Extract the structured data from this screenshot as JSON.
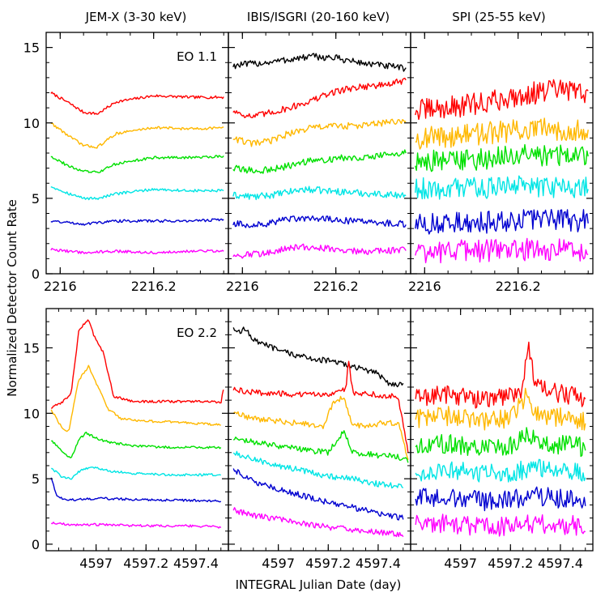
{
  "figure": {
    "ylabel": "Normalized Detector Count Rate",
    "xlabel": "INTEGRAL Julian Date (day)",
    "column_titles": [
      "JEM-X (3-30 keV)",
      "IBIS/ISGRI (20-160 keV)",
      "SPI (25-55 keV)"
    ],
    "panel_labels": [
      "EO 1.1",
      "EO 2.2"
    ]
  },
  "chart_data": [
    {
      "type": "line",
      "instrument": "JEM-X (3-30 keV)",
      "label": "EO 1.1",
      "xlim": [
        2215.97,
        2216.36
      ],
      "ylim": [
        0,
        16
      ],
      "xticks": [
        2216,
        2216.2
      ],
      "yticks": [
        0,
        5,
        10,
        15
      ],
      "series": [
        {
          "color": "#ff0000",
          "x": [
            2215.98,
            2216.02,
            2216.05,
            2216.08,
            2216.12,
            2216.2,
            2216.28,
            2216.35
          ],
          "y": [
            12.0,
            11.3,
            10.7,
            10.6,
            11.4,
            11.8,
            11.7,
            11.7
          ]
        },
        {
          "color": "#ffb800",
          "x": [
            2215.98,
            2216.02,
            2216.05,
            2216.08,
            2216.12,
            2216.2,
            2216.28,
            2216.35
          ],
          "y": [
            10.0,
            9.1,
            8.5,
            8.4,
            9.3,
            9.7,
            9.6,
            9.7
          ]
        },
        {
          "color": "#00e000",
          "x": [
            2215.98,
            2216.02,
            2216.05,
            2216.08,
            2216.12,
            2216.2,
            2216.28,
            2216.35
          ],
          "y": [
            7.8,
            7.1,
            6.8,
            6.7,
            7.3,
            7.7,
            7.7,
            7.8
          ]
        },
        {
          "color": "#00e5e5",
          "x": [
            2215.98,
            2216.02,
            2216.05,
            2216.08,
            2216.12,
            2216.2,
            2216.28,
            2216.35
          ],
          "y": [
            5.8,
            5.3,
            5.0,
            5.0,
            5.3,
            5.6,
            5.5,
            5.5
          ]
        },
        {
          "color": "#0000d0",
          "x": [
            2215.98,
            2216.05,
            2216.12,
            2216.2,
            2216.28,
            2216.35
          ],
          "y": [
            3.5,
            3.3,
            3.5,
            3.5,
            3.5,
            3.6
          ]
        },
        {
          "color": "#ff00ff",
          "x": [
            2215.98,
            2216.05,
            2216.12,
            2216.2,
            2216.28,
            2216.35
          ],
          "y": [
            1.6,
            1.4,
            1.5,
            1.4,
            1.5,
            1.5
          ]
        }
      ]
    },
    {
      "type": "line",
      "instrument": "IBIS/ISGRI (20-160 keV)",
      "label": "",
      "xlim": [
        2215.97,
        2216.36
      ],
      "ylim": [
        0,
        16
      ],
      "xticks": [
        2216,
        2216.2
      ],
      "yticks": [
        0,
        5,
        10,
        15
      ],
      "series": [
        {
          "color": "#000000",
          "x": [
            2215.98,
            2216.05,
            2216.1,
            2216.15,
            2216.2,
            2216.25,
            2216.3,
            2216.35
          ],
          "y": [
            13.8,
            14.0,
            14.2,
            14.4,
            14.3,
            14.0,
            13.8,
            13.6
          ]
        },
        {
          "color": "#ff0000",
          "x": [
            2215.98,
            2216.02,
            2216.05,
            2216.1,
            2216.15,
            2216.2,
            2216.25,
            2216.3,
            2216.35
          ],
          "y": [
            10.8,
            10.4,
            10.6,
            11.0,
            11.5,
            12.1,
            12.4,
            12.5,
            12.8
          ]
        },
        {
          "color": "#ffb800",
          "x": [
            2215.98,
            2216.02,
            2216.06,
            2216.1,
            2216.15,
            2216.2,
            2216.25,
            2216.3,
            2216.35
          ],
          "y": [
            9.0,
            8.6,
            8.8,
            9.3,
            9.7,
            9.8,
            9.8,
            10.0,
            10.1
          ]
        },
        {
          "color": "#00e000",
          "x": [
            2215.98,
            2216.03,
            2216.08,
            2216.13,
            2216.18,
            2216.23,
            2216.28,
            2216.35
          ],
          "y": [
            7.0,
            6.8,
            7.0,
            7.4,
            7.6,
            7.7,
            7.8,
            8.0
          ]
        },
        {
          "color": "#00e5e5",
          "x": [
            2215.98,
            2216.03,
            2216.08,
            2216.13,
            2216.18,
            2216.23,
            2216.28,
            2216.35
          ],
          "y": [
            5.2,
            5.1,
            5.3,
            5.6,
            5.5,
            5.4,
            5.3,
            5.2
          ]
        },
        {
          "color": "#0000d0",
          "x": [
            2215.98,
            2216.03,
            2216.08,
            2216.13,
            2216.18,
            2216.23,
            2216.28,
            2216.35
          ],
          "y": [
            3.3,
            3.2,
            3.5,
            3.7,
            3.6,
            3.5,
            3.4,
            3.3
          ]
        },
        {
          "color": "#ff00ff",
          "x": [
            2215.98,
            2216.03,
            2216.08,
            2216.13,
            2216.18,
            2216.23,
            2216.28,
            2216.35
          ],
          "y": [
            1.2,
            1.3,
            1.6,
            1.8,
            1.7,
            1.5,
            1.5,
            1.6
          ]
        }
      ]
    },
    {
      "type": "line",
      "instrument": "SPI (25-55 keV)",
      "label": "",
      "xlim": [
        2215.97,
        2216.36
      ],
      "ylim": [
        0,
        16
      ],
      "xticks": [
        2216,
        2216.2
      ],
      "yticks": [
        0,
        5,
        10,
        15
      ],
      "series": [
        {
          "color": "#ff0000",
          "x": [
            2215.98,
            2216.05,
            2216.12,
            2216.2,
            2216.28,
            2216.35
          ],
          "y": [
            10.8,
            11.0,
            11.3,
            11.8,
            12.2,
            12.0
          ]
        },
        {
          "color": "#ffb800",
          "x": [
            2215.98,
            2216.05,
            2216.12,
            2216.2,
            2216.28,
            2216.35
          ],
          "y": [
            9.0,
            9.1,
            9.3,
            9.5,
            9.6,
            9.5
          ]
        },
        {
          "color": "#00e000",
          "x": [
            2215.98,
            2216.05,
            2216.12,
            2216.2,
            2216.28,
            2216.35
          ],
          "y": [
            7.4,
            7.5,
            7.6,
            7.8,
            7.9,
            7.8
          ]
        },
        {
          "color": "#00e5e5",
          "x": [
            2215.98,
            2216.05,
            2216.12,
            2216.2,
            2216.28,
            2216.35
          ],
          "y": [
            5.6,
            5.7,
            5.7,
            5.8,
            5.8,
            5.7
          ]
        },
        {
          "color": "#0000d0",
          "x": [
            2215.98,
            2216.05,
            2216.12,
            2216.2,
            2216.28,
            2216.35
          ],
          "y": [
            3.2,
            3.3,
            3.4,
            3.6,
            3.6,
            3.5
          ]
        },
        {
          "color": "#ff00ff",
          "x": [
            2215.98,
            2216.05,
            2216.12,
            2216.2,
            2216.28,
            2216.35
          ],
          "y": [
            1.4,
            1.5,
            1.5,
            1.6,
            1.6,
            1.5
          ]
        }
      ]
    },
    {
      "type": "line",
      "instrument": "JEM-X (3-30 keV)",
      "label": "EO 2.2",
      "xlim": [
        4596.8,
        4597.53
      ],
      "ylim": [
        -0.5,
        18
      ],
      "xticks": [
        4597,
        4597.2,
        4597.4
      ],
      "yticks": [
        0,
        5,
        10,
        15
      ],
      "series": [
        {
          "color": "#ff0000",
          "x": [
            4596.82,
            4596.86,
            4596.9,
            4596.93,
            4596.95,
            4596.97,
            4596.99,
            4597.03,
            4597.07,
            4597.15,
            4597.3,
            4597.45,
            4597.5,
            4597.51
          ],
          "y": [
            10.4,
            10.8,
            11.5,
            16.2,
            16.8,
            17.2,
            16.0,
            14.6,
            11.3,
            10.9,
            10.9,
            10.9,
            10.8,
            11.8
          ]
        },
        {
          "color": "#ffb800",
          "x": [
            4596.82,
            4596.86,
            4596.89,
            4596.93,
            4596.97,
            4597.0,
            4597.05,
            4597.1,
            4597.2,
            4597.35,
            4597.5
          ],
          "y": [
            10.3,
            9.0,
            8.6,
            12.5,
            13.6,
            12.3,
            10.3,
            9.6,
            9.4,
            9.3,
            9.1
          ]
        },
        {
          "color": "#00e000",
          "x": [
            4596.82,
            4596.86,
            4596.9,
            4596.93,
            4596.96,
            4597.0,
            4597.05,
            4597.15,
            4597.3,
            4597.5
          ],
          "y": [
            7.9,
            7.2,
            6.5,
            8.0,
            8.5,
            8.1,
            7.8,
            7.5,
            7.4,
            7.4
          ]
        },
        {
          "color": "#00e5e5",
          "x": [
            4596.82,
            4596.86,
            4596.9,
            4596.94,
            4596.98,
            4597.05,
            4597.15,
            4597.3,
            4597.5
          ],
          "y": [
            5.8,
            5.2,
            5.0,
            5.7,
            5.9,
            5.6,
            5.4,
            5.3,
            5.3
          ]
        },
        {
          "color": "#0000d0",
          "x": [
            4596.82,
            4596.84,
            4596.87,
            4596.92,
            4597.0,
            4597.2,
            4597.5
          ],
          "y": [
            5.1,
            3.8,
            3.4,
            3.4,
            3.5,
            3.4,
            3.3
          ]
        },
        {
          "color": "#ff00ff",
          "x": [
            4596.82,
            4596.9,
            4597.0,
            4597.2,
            4597.4,
            4597.5
          ],
          "y": [
            1.6,
            1.5,
            1.5,
            1.4,
            1.4,
            1.3
          ]
        }
      ]
    },
    {
      "type": "line",
      "instrument": "IBIS/ISGRI (20-160 keV)",
      "label": "",
      "xlim": [
        4596.8,
        4597.53
      ],
      "ylim": [
        -0.5,
        18
      ],
      "xticks": [
        4597,
        4597.2,
        4597.4
      ],
      "yticks": [
        0,
        5,
        10,
        15
      ],
      "series": [
        {
          "color": "#000000",
          "x": [
            4596.82,
            4596.85,
            4596.86,
            4596.9,
            4597.0,
            4597.1,
            4597.2,
            4597.3,
            4597.4,
            4597.45,
            4597.5
          ],
          "y": [
            16.6,
            16.0,
            16.7,
            15.6,
            14.8,
            14.3,
            14.0,
            13.6,
            13.0,
            12.2,
            12.3
          ]
        },
        {
          "color": "#ff0000",
          "x": [
            4596.82,
            4596.9,
            4597.0,
            4597.1,
            4597.2,
            4597.27,
            4597.28,
            4597.3,
            4597.4,
            4597.48,
            4597.52
          ],
          "y": [
            11.8,
            11.6,
            11.5,
            11.4,
            11.5,
            11.8,
            14.0,
            11.6,
            11.4,
            11.3,
            7.0
          ]
        },
        {
          "color": "#ffb800",
          "x": [
            4596.82,
            4596.9,
            4597.0,
            4597.1,
            4597.18,
            4597.22,
            4597.26,
            4597.3,
            4597.4,
            4597.48,
            4597.52
          ],
          "y": [
            10.0,
            9.6,
            9.4,
            9.2,
            9.0,
            10.8,
            11.3,
            9.0,
            9.2,
            9.3,
            6.5
          ]
        },
        {
          "color": "#00e000",
          "x": [
            4596.82,
            4596.9,
            4597.0,
            4597.1,
            4597.2,
            4597.26,
            4597.3,
            4597.4,
            4597.48,
            4597.52
          ],
          "y": [
            8.0,
            7.8,
            7.5,
            7.2,
            7.0,
            8.6,
            7.0,
            6.8,
            6.7,
            6.3
          ]
        },
        {
          "color": "#00e5e5",
          "x": [
            4596.82,
            4596.9,
            4597.0,
            4597.1,
            4597.2,
            4597.3,
            4597.4,
            4597.5
          ],
          "y": [
            7.0,
            6.5,
            6.0,
            5.6,
            5.2,
            5.0,
            4.6,
            4.4
          ]
        },
        {
          "color": "#0000d0",
          "x": [
            4596.82,
            4596.85,
            4596.9,
            4597.0,
            4597.1,
            4597.2,
            4597.3,
            4597.4,
            4597.5
          ],
          "y": [
            5.8,
            5.3,
            4.8,
            4.2,
            3.7,
            3.2,
            2.8,
            2.4,
            2.0
          ]
        },
        {
          "color": "#ff00ff",
          "x": [
            4596.82,
            4596.9,
            4597.0,
            4597.1,
            4597.2,
            4597.3,
            4597.4,
            4597.5
          ],
          "y": [
            2.6,
            2.2,
            1.9,
            1.6,
            1.3,
            1.1,
            0.9,
            0.7
          ]
        }
      ]
    },
    {
      "type": "line",
      "instrument": "SPI (25-55 keV)",
      "label": "",
      "xlim": [
        4596.8,
        4597.53
      ],
      "ylim": [
        -0.5,
        18
      ],
      "xticks": [
        4597,
        4597.2,
        4597.4
      ],
      "yticks": [
        0,
        5,
        10,
        15
      ],
      "series": [
        {
          "color": "#ff0000",
          "x": [
            4596.82,
            4596.95,
            4597.1,
            4597.2,
            4597.25,
            4597.27,
            4597.3,
            4597.4,
            4597.5
          ],
          "y": [
            11.2,
            11.5,
            11.0,
            11.4,
            12.0,
            15.4,
            12.0,
            11.5,
            11.2
          ]
        },
        {
          "color": "#ffb800",
          "x": [
            4596.82,
            4596.95,
            4597.1,
            4597.2,
            4597.27,
            4597.3,
            4597.4,
            4597.5
          ],
          "y": [
            9.6,
            9.8,
            9.4,
            9.6,
            11.5,
            10.0,
            9.7,
            9.4
          ]
        },
        {
          "color": "#00e000",
          "x": [
            4596.82,
            4596.95,
            4597.1,
            4597.2,
            4597.27,
            4597.3,
            4597.4,
            4597.5
          ],
          "y": [
            7.5,
            7.7,
            7.3,
            7.5,
            8.5,
            7.8,
            7.6,
            7.4
          ]
        },
        {
          "color": "#00e5e5",
          "x": [
            4596.82,
            4596.95,
            4597.1,
            4597.2,
            4597.3,
            4597.4,
            4597.5
          ],
          "y": [
            5.5,
            5.7,
            5.4,
            5.5,
            5.8,
            5.6,
            5.4
          ]
        },
        {
          "color": "#0000d0",
          "x": [
            4596.82,
            4596.95,
            4597.1,
            4597.2,
            4597.3,
            4597.4,
            4597.5
          ],
          "y": [
            3.5,
            3.6,
            3.3,
            3.4,
            3.7,
            3.5,
            3.3
          ]
        },
        {
          "color": "#ff00ff",
          "x": [
            4596.82,
            4596.95,
            4597.1,
            4597.2,
            4597.3,
            4597.4,
            4597.5
          ],
          "y": [
            1.5,
            1.6,
            1.3,
            1.4,
            1.6,
            1.5,
            1.4
          ]
        }
      ]
    }
  ]
}
